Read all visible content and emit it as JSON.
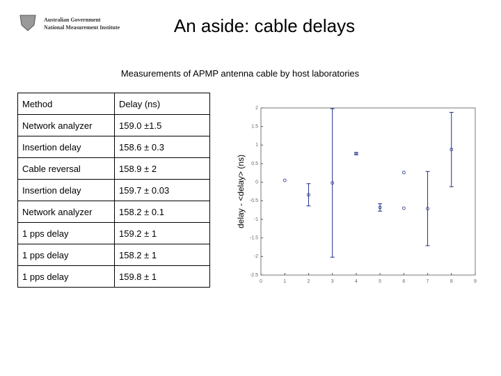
{
  "header": {
    "logo_line1": "Australian Government",
    "logo_line2": "National Measurement Institute",
    "title": "An aside: cable delays",
    "subtitle": "Measurements of APMP antenna cable by host laboratories"
  },
  "table": {
    "header": [
      "Method",
      "Delay (ns)"
    ],
    "rows": [
      [
        "Network analyzer",
        "159.0 ±1.5"
      ],
      [
        "Insertion delay",
        "158.6 ±  0.3"
      ],
      [
        "Cable reversal",
        "158.9 ±  2"
      ],
      [
        "Insertion delay",
        "159.7 ±  0.03"
      ],
      [
        "Network analyzer",
        "158.2 ±  0.1"
      ],
      [
        "1 pps delay",
        "159.2 ±  1"
      ],
      [
        "1 pps delay",
        "158.2 ±  1"
      ],
      [
        "1 pps delay",
        "159.8 ± 1"
      ]
    ]
  },
  "chart_data": {
    "type": "errorbar",
    "y_label": "delay - <delay> (ns)",
    "x": [
      1,
      2,
      3,
      4,
      5,
      6,
      6,
      7,
      8
    ],
    "values": [
      0.05,
      -0.34,
      -0.02,
      0.77,
      -0.68,
      0.26,
      -0.7,
      -0.71,
      0.88
    ],
    "errors": [
      null,
      0.3,
      2,
      0.03,
      0.1,
      null,
      null,
      1,
      1
    ],
    "color": "#1f2d8a",
    "xlim": [
      0,
      9
    ],
    "xticks": [
      0,
      1,
      2,
      3,
      4,
      5,
      6,
      7,
      8,
      9
    ],
    "ylim": [
      -2.5,
      2
    ],
    "yticks": [
      -2.5,
      -2,
      -1.5,
      -1,
      -0.5,
      0,
      0.5,
      1,
      1.5,
      2
    ]
  }
}
